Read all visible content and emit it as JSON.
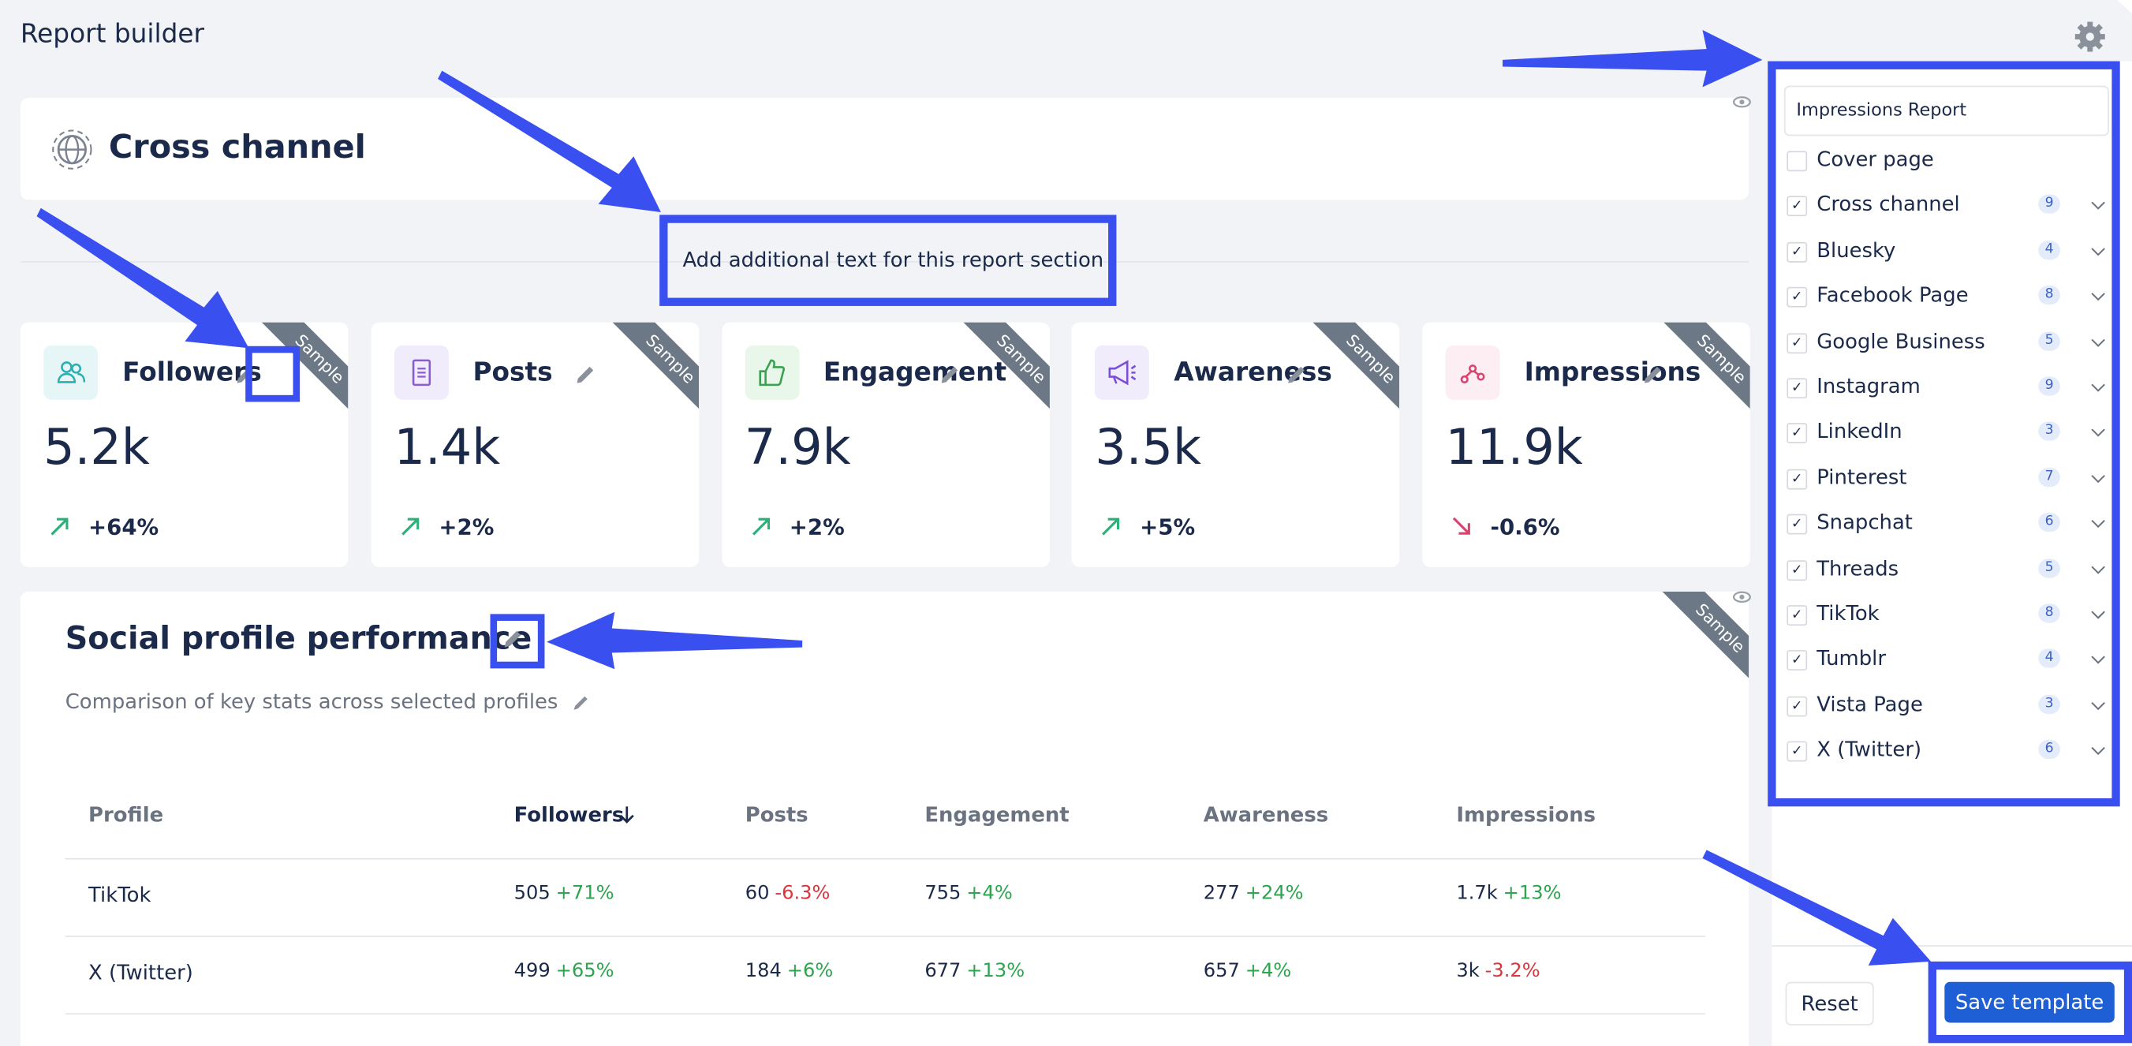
{
  "header": {
    "title": "Report builder"
  },
  "sample_label": "Sample",
  "section": {
    "title": "Cross channel",
    "note": "Add additional text for this report section"
  },
  "cards": [
    {
      "label": "Followers",
      "value": "5.2k",
      "change": "+64%"
    },
    {
      "label": "Posts",
      "value": "1.4k",
      "change": "+2%"
    },
    {
      "label": "Engagement",
      "value": "7.9k",
      "change": "+2%"
    },
    {
      "label": "Awareness",
      "value": "3.5k",
      "change": "+5%"
    },
    {
      "label": "Impressions",
      "value": "11.9k",
      "change": "-0.6%"
    }
  ],
  "performance": {
    "title": "Social profile performance",
    "subtitle": "Comparison of key stats across selected profiles",
    "columns": [
      "Profile",
      "Followers",
      "Posts",
      "Engagement",
      "Awareness",
      "Impressions"
    ],
    "rows": [
      [
        "TikTok",
        [
          "505",
          "+71%"
        ],
        [
          "60",
          "-6.3%"
        ],
        [
          "755",
          "+4%"
        ],
        [
          "277",
          "+24%"
        ],
        [
          "1.7k",
          "+13%"
        ]
      ],
      [
        "X (Twitter)",
        [
          "499",
          "+65%"
        ],
        [
          "184",
          "+6%"
        ],
        [
          "677",
          "+13%"
        ],
        [
          "657",
          "+4%"
        ],
        [
          "3k",
          "-3.2%"
        ]
      ]
    ]
  },
  "sidebar": {
    "template": "Impressions Report",
    "items": [
      {
        "label": "Cover page",
        "checked": false
      },
      {
        "label": "Cross channel",
        "checked": true,
        "count": 9
      },
      {
        "label": "Bluesky",
        "checked": true,
        "count": 4
      },
      {
        "label": "Facebook Page",
        "checked": true,
        "count": 8
      },
      {
        "label": "Google Business",
        "checked": true,
        "count": 5
      },
      {
        "label": "Instagram",
        "checked": true,
        "count": 9
      },
      {
        "label": "LinkedIn",
        "checked": true,
        "count": 3
      },
      {
        "label": "Pinterest",
        "checked": true,
        "count": 7
      },
      {
        "label": "Snapchat",
        "checked": true,
        "count": 6
      },
      {
        "label": "Threads",
        "checked": true,
        "count": 5
      },
      {
        "label": "TikTok",
        "checked": true,
        "count": 8
      },
      {
        "label": "Tumblr",
        "checked": true,
        "count": 4
      },
      {
        "label": "Vista Page",
        "checked": true,
        "count": 3
      },
      {
        "label": "X (Twitter)",
        "checked": true,
        "count": 6
      }
    ],
    "reset": "Reset",
    "save": "Save template"
  }
}
